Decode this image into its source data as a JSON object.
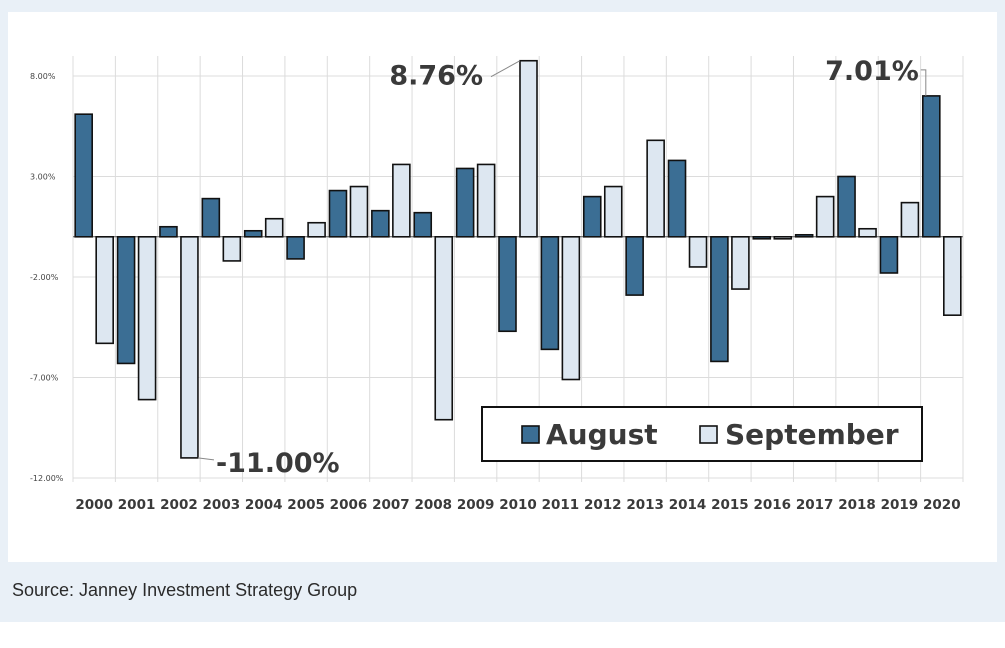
{
  "source_text": "Source: Janney Investment Strategy Group",
  "colors": {
    "august": "#3b6e94",
    "september": "#dde7f1",
    "stroke": "#111111",
    "grid": "#dcdcdc",
    "background": "#e9f0f7"
  },
  "chart_data": {
    "type": "bar",
    "title": "",
    "xlabel": "",
    "ylabel": "",
    "ylim": [
      -12,
      8
    ],
    "yticks": [
      8,
      3,
      -2,
      -7,
      -12
    ],
    "ytick_labels": [
      "8.00%",
      "3.00%",
      "-2.00%",
      "-7.00%",
      "-12.00%"
    ],
    "categories": [
      "2000",
      "2001",
      "2002",
      "2003",
      "2004",
      "2005",
      "2006",
      "2007",
      "2008",
      "2009",
      "2010",
      "2011",
      "2012",
      "2013",
      "2014",
      "2015",
      "2016",
      "2017",
      "2018",
      "2019",
      "2020"
    ],
    "series": [
      {
        "name": "August",
        "values": [
          6.1,
          -6.3,
          0.5,
          1.9,
          0.3,
          -1.1,
          2.3,
          1.3,
          1.2,
          3.4,
          -4.7,
          -5.6,
          2.0,
          -2.9,
          3.8,
          -6.2,
          -0.1,
          0.1,
          3.0,
          -1.8,
          7.01
        ]
      },
      {
        "name": "September",
        "values": [
          -5.3,
          -8.1,
          -11.0,
          -1.2,
          0.9,
          0.7,
          2.5,
          3.6,
          -9.1,
          3.6,
          8.76,
          -7.1,
          2.5,
          4.8,
          -1.5,
          -2.6,
          -0.1,
          2.0,
          0.4,
          1.7,
          -3.9
        ]
      }
    ],
    "legend": {
      "labels": [
        "August",
        "September"
      ],
      "placement": "lower-right"
    },
    "annotations": [
      {
        "text": "-11.00%",
        "category": "2002",
        "series": "September"
      },
      {
        "text": "8.76%",
        "category": "2010",
        "series": "September"
      },
      {
        "text": "7.01%",
        "category": "2020",
        "series": "August"
      }
    ]
  }
}
